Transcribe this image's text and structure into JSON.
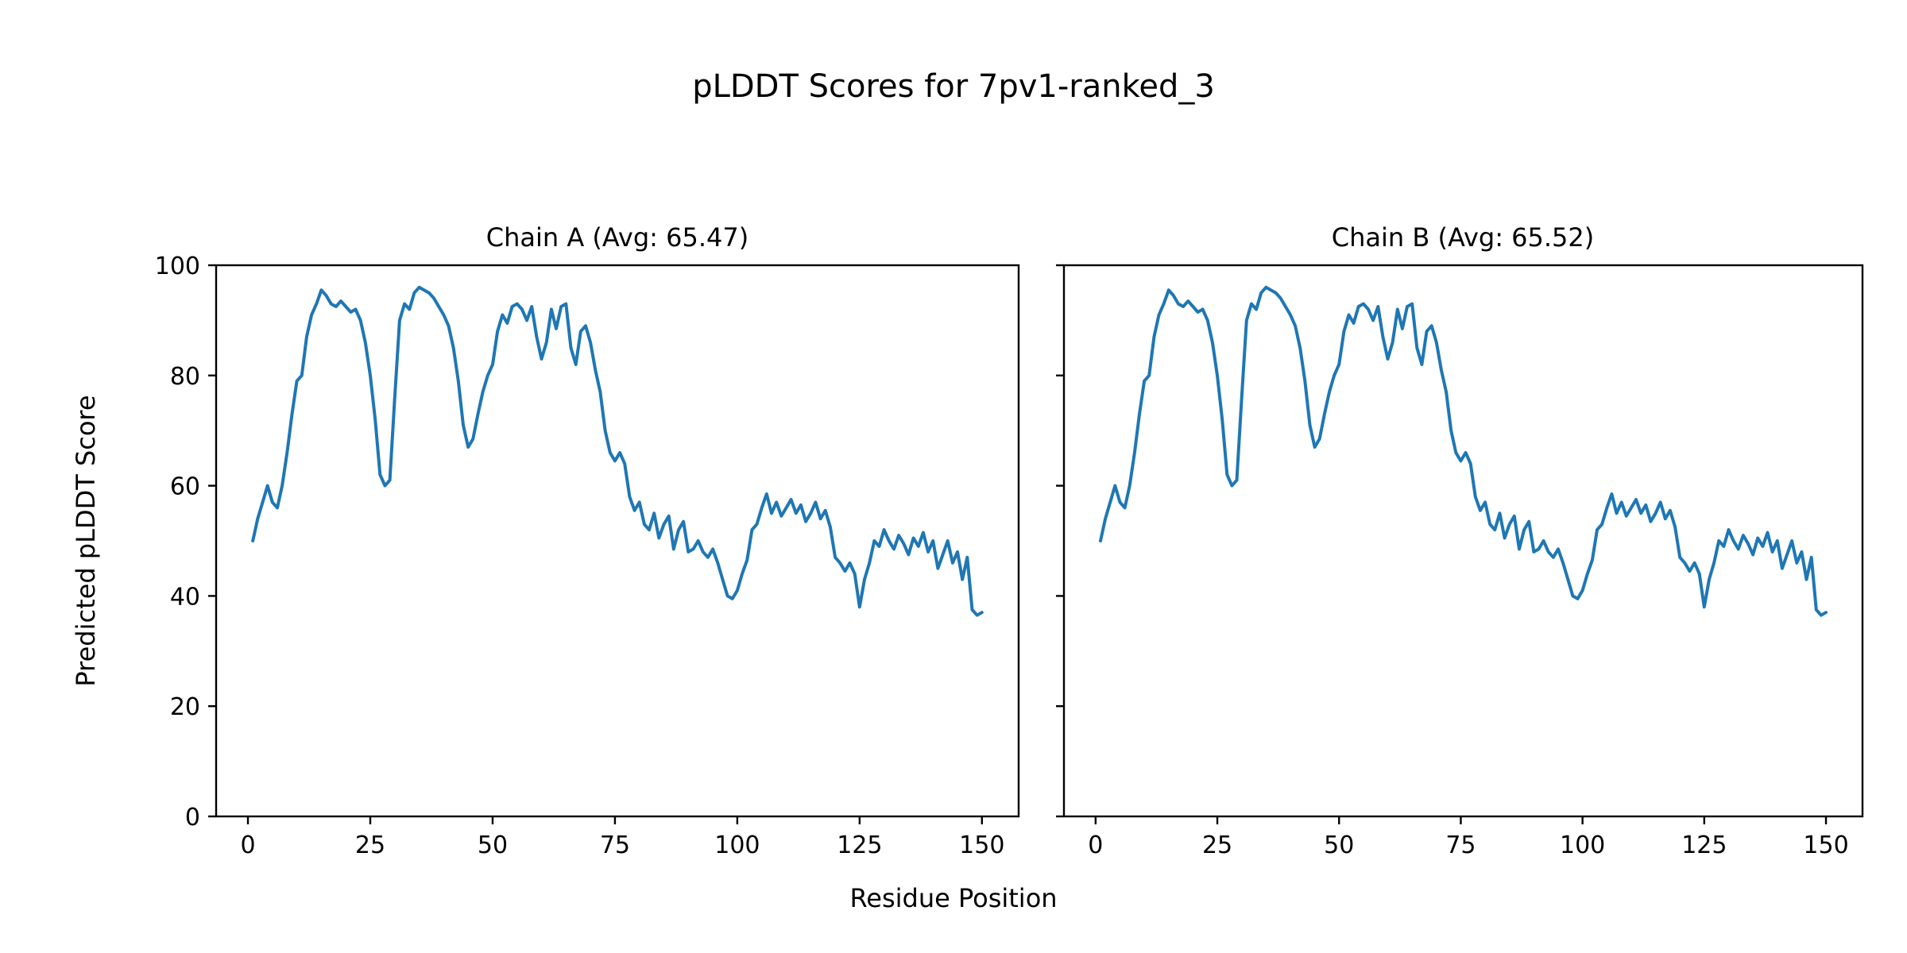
{
  "figure": {
    "title": "pLDDT Scores for 7pv1-ranked_3",
    "xlabel": "Residue Position",
    "ylabel": "Predicted pLDDT Score"
  },
  "chart_data": {
    "type": "line",
    "title": "pLDDT Scores for 7pv1-ranked_3",
    "xlabel": "Residue Position",
    "ylabel": "Predicted pLDDT Score",
    "xlim": [
      -6.5,
      157.5
    ],
    "ylim": [
      0,
      100
    ],
    "x_ticks": [
      0,
      25,
      50,
      75,
      100,
      125,
      150
    ],
    "y_ticks": [
      0,
      20,
      40,
      60,
      80,
      100
    ],
    "line_color": "#1f77b4",
    "grid": false,
    "legend": "none",
    "subplots": [
      {
        "title": "Chain A (Avg: 65.47)",
        "chain": "A",
        "avg": 65.47
      },
      {
        "title": "Chain B (Avg: 65.52)",
        "chain": "B",
        "avg": 65.52
      }
    ],
    "x_start": 1,
    "values": [
      50,
      54,
      57,
      60,
      57,
      56,
      60,
      66,
      73,
      79,
      80,
      87,
      91,
      93,
      95.5,
      94.5,
      93,
      92.5,
      93.5,
      92.5,
      91.5,
      92,
      90,
      86,
      80,
      72,
      62,
      60,
      61,
      76,
      90,
      93,
      92,
      95,
      96,
      95.5,
      95,
      94,
      92.5,
      91,
      89,
      85,
      79,
      71,
      67,
      68.5,
      73,
      77,
      80,
      82,
      88,
      91,
      89.5,
      92.5,
      93,
      92,
      90,
      92.5,
      87,
      83,
      86,
      92,
      88.5,
      92.5,
      93,
      85,
      82,
      88,
      89,
      86,
      81,
      77,
      70,
      66,
      64.5,
      66,
      64,
      58,
      55.5,
      57,
      53,
      52,
      55,
      50.5,
      53,
      54.5,
      48.5,
      52,
      53.5,
      48,
      48.5,
      50,
      48,
      47,
      48.5,
      46,
      43,
      40,
      39.5,
      41,
      44,
      46.5,
      52,
      53,
      56,
      58.5,
      55,
      57,
      54.5,
      56,
      57.5,
      55,
      56.5,
      53.5,
      55,
      57,
      54,
      55.5,
      52.5,
      47,
      46,
      44.5,
      46,
      44,
      38,
      43,
      46,
      50,
      49,
      52,
      50,
      48.5,
      51,
      49.5,
      47.5,
      50.5,
      49,
      51.5,
      48,
      50,
      45,
      47.5,
      50,
      46,
      48,
      43,
      47,
      37.5,
      36.5,
      37
    ]
  }
}
